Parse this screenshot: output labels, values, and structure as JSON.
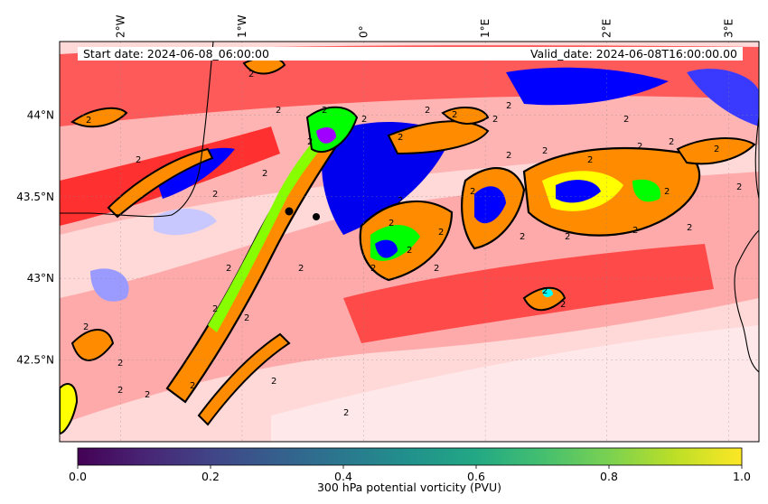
{
  "header": {
    "start_date": "Start date: 2024-06-08_06:00:00",
    "valid_date": "Valid_date: 2024-06-08T16:00:00.00"
  },
  "map": {
    "lon_range": [
      -2.5,
      3.25
    ],
    "lat_range": [
      42.0,
      44.45
    ],
    "lon_ticks": [
      {
        "value": -2,
        "label": "2°W"
      },
      {
        "value": -1,
        "label": "1°W"
      },
      {
        "value": 0,
        "label": "0°"
      },
      {
        "value": 1,
        "label": "1°E"
      },
      {
        "value": 2,
        "label": "2°E"
      },
      {
        "value": 3,
        "label": "3°E"
      }
    ],
    "lat_ticks": [
      {
        "value": 44.0,
        "label": "44°N"
      },
      {
        "value": 43.5,
        "label": "43.5°N"
      },
      {
        "value": 43.0,
        "label": "43°N"
      },
      {
        "value": 42.5,
        "label": "42.5°N"
      }
    ],
    "contour_label": "2",
    "colors": {
      "strong_red": "#ff0000",
      "light_red": "#ffb0b0",
      "pale_red": "#ffe4e4",
      "blue": "#0000ff",
      "light_blue": "#c8c8ff",
      "green": "#00ff00",
      "yellow": "#ffff00",
      "orange": "#ff8c00",
      "purple": "#a000ff",
      "cyan": "#00ffff"
    }
  },
  "colorbar": {
    "label": "300 hPa potential vorticity (PVU)",
    "colormap": "viridis",
    "range": [
      0.0,
      1.0
    ],
    "ticks": [
      {
        "value": 0.0,
        "label": "0.0"
      },
      {
        "value": 0.2,
        "label": "0.2"
      },
      {
        "value": 0.4,
        "label": "0.4"
      },
      {
        "value": 0.6,
        "label": "0.6"
      },
      {
        "value": 0.8,
        "label": "0.8"
      },
      {
        "value": 1.0,
        "label": "1.0"
      }
    ]
  }
}
